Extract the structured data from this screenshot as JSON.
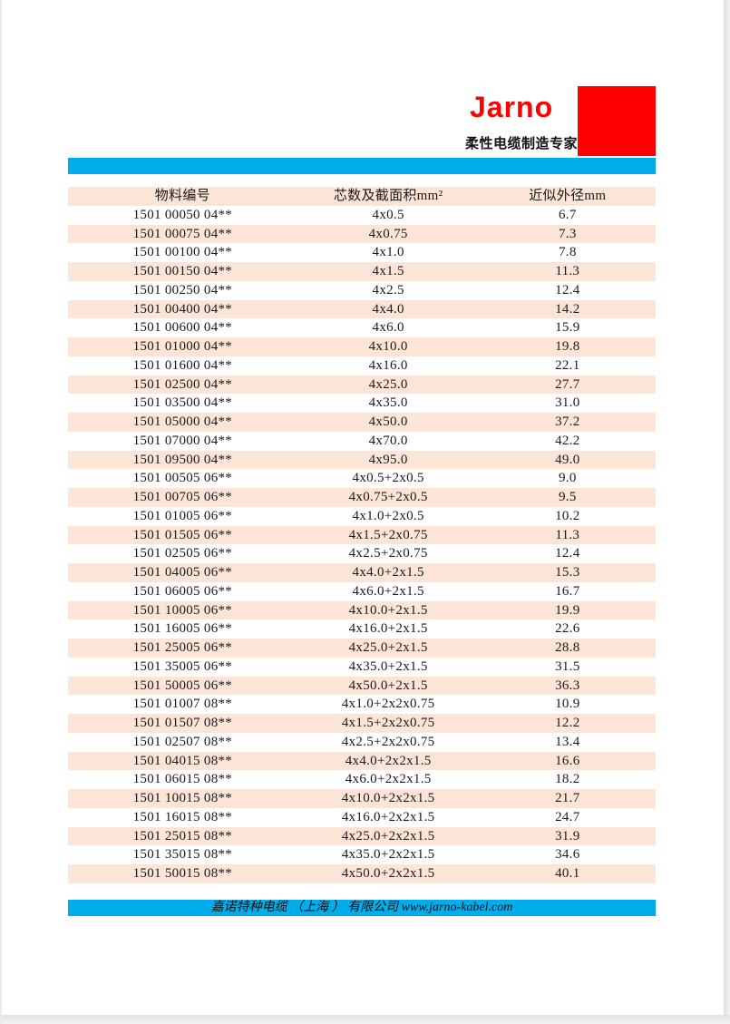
{
  "colors": {
    "accent_cyan": "#00ACEC",
    "brand_red": "#FE0000",
    "row_stripe": "#FCE4D6",
    "text": "#1A1A1A"
  },
  "header": {
    "logo": "Jarno",
    "tagline": "柔性电缆制造专家"
  },
  "table": {
    "columns": [
      "物料编号",
      "芯数及截面积mm²",
      "近似外径mm"
    ],
    "rows": [
      [
        "1501 00050 04**",
        "4x0.5",
        "6.7"
      ],
      [
        "1501 00075 04**",
        "4x0.75",
        "7.3"
      ],
      [
        "1501 00100 04**",
        "4x1.0",
        "7.8"
      ],
      [
        "1501 00150 04**",
        "4x1.5",
        "11.3"
      ],
      [
        "1501 00250 04**",
        "4x2.5",
        "12.4"
      ],
      [
        "1501 00400 04**",
        "4x4.0",
        "14.2"
      ],
      [
        "1501 00600 04**",
        "4x6.0",
        "15.9"
      ],
      [
        "1501 01000 04**",
        "4x10.0",
        "19.8"
      ],
      [
        "1501 01600 04**",
        "4x16.0",
        "22.1"
      ],
      [
        "1501 02500 04**",
        "4x25.0",
        "27.7"
      ],
      [
        "1501 03500 04**",
        "4x35.0",
        "31.0"
      ],
      [
        "1501 05000 04**",
        "4x50.0",
        "37.2"
      ],
      [
        "1501 07000 04**",
        "4x70.0",
        "42.2"
      ],
      [
        "1501 09500 04**",
        "4x95.0",
        "49.0"
      ],
      [
        "1501 00505 06**",
        "4x0.5+2x0.5",
        "9.0"
      ],
      [
        "1501 00705 06**",
        "4x0.75+2x0.5",
        "9.5"
      ],
      [
        "1501 01005 06**",
        "4x1.0+2x0.5",
        "10.2"
      ],
      [
        "1501 01505 06**",
        "4x1.5+2x0.75",
        "11.3"
      ],
      [
        "1501 02505 06**",
        "4x2.5+2x0.75",
        "12.4"
      ],
      [
        "1501 04005 06**",
        "4x4.0+2x1.5",
        "15.3"
      ],
      [
        "1501 06005 06**",
        "4x6.0+2x1.5",
        "16.7"
      ],
      [
        "1501 10005 06**",
        "4x10.0+2x1.5",
        "19.9"
      ],
      [
        "1501 16005 06**",
        "4x16.0+2x1.5",
        "22.6"
      ],
      [
        "1501 25005 06**",
        "4x25.0+2x1.5",
        "28.8"
      ],
      [
        "1501 35005 06**",
        "4x35.0+2x1.5",
        "31.5"
      ],
      [
        "1501 50005 06**",
        "4x50.0+2x1.5",
        "36.3"
      ],
      [
        "1501 01007 08**",
        "4x1.0+2x2x0.75",
        "10.9"
      ],
      [
        "1501 01507 08**",
        "4x1.5+2x2x0.75",
        "12.2"
      ],
      [
        "1501 02507 08**",
        "4x2.5+2x2x0.75",
        "13.4"
      ],
      [
        "1501 04015 08**",
        "4x4.0+2x2x1.5",
        "16.6"
      ],
      [
        "1501 06015 08**",
        "4x6.0+2x2x1.5",
        "18.2"
      ],
      [
        "1501 10015 08**",
        "4x10.0+2x2x1.5",
        "21.7"
      ],
      [
        "1501 16015 08**",
        "4x16.0+2x2x1.5",
        "24.7"
      ],
      [
        "1501 25015 08**",
        "4x25.0+2x2x1.5",
        "31.9"
      ],
      [
        "1501 35015 08**",
        "4x35.0+2x2x1.5",
        "34.6"
      ],
      [
        "1501 50015 08**",
        "4x50.0+2x2x1.5",
        "40.1"
      ]
    ]
  },
  "footer": {
    "text": "嘉诺特种电缆 （上海 ） 有限公司 www.jarno-kabel.com"
  }
}
